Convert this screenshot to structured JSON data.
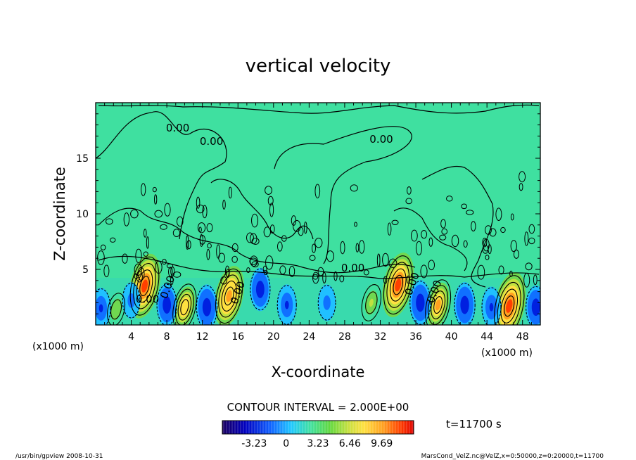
{
  "chart_data": {
    "type": "heatmap",
    "title": "vertical velocity",
    "xlabel": "X-coordinate",
    "ylabel": "Z-coordinate",
    "x_unit_left": "(x1000 m)",
    "x_unit_right": "(x1000 m)",
    "xlim": [
      0,
      50
    ],
    "ylim": [
      0,
      20
    ],
    "x_ticks": [
      "4",
      "8",
      "12",
      "16",
      "20",
      "24",
      "28",
      "32",
      "36",
      "40",
      "44",
      "48"
    ],
    "y_ticks": [
      "5",
      "10",
      "15"
    ],
    "contour_labels": [
      "0.00",
      "0.00",
      "0.00",
      "0.00",
      "0.00",
      "0.00",
      "0.00",
      "0.00",
      "0.00"
    ],
    "contour_interval_text": "CONTOUR INTERVAL = 2.000E+00",
    "colorbar_ticks": [
      "-3.23",
      "0",
      "3.23",
      "6.46",
      "9.69"
    ],
    "colorbar_range": [
      -6.46,
      12.92
    ],
    "time_label": "t=11700 s",
    "footer_left": "/usr/bin/gpview   2008-10-31",
    "footer_right": "MarsCond_VelZ.nc@VelZ,x=0:50000,z=0:20000,t=11700",
    "colors": {
      "background": "#3fe0a0",
      "updraft_core": "#ff4000",
      "downdraft_core": "#0000c0",
      "contour": "#000000"
    },
    "features": [
      {
        "kind": "updraft",
        "x": 5.5,
        "z": 3.5,
        "w": 9.0
      },
      {
        "kind": "updraft",
        "x": 10.0,
        "z": 1.6,
        "w": 6.0
      },
      {
        "kind": "updraft",
        "x": 15.0,
        "z": 2.6,
        "w": 8.0
      },
      {
        "kind": "updraft",
        "x": 31.0,
        "z": 2.0,
        "w": 3.5
      },
      {
        "kind": "updraft",
        "x": 34.0,
        "z": 3.6,
        "w": 9.0
      },
      {
        "kind": "updraft",
        "x": 38.5,
        "z": 1.8,
        "w": 7.0
      },
      {
        "kind": "updraft",
        "x": 46.5,
        "z": 1.7,
        "w": 9.7
      },
      {
        "kind": "updraft",
        "x": 2.3,
        "z": 1.4,
        "w": 2.5
      },
      {
        "kind": "downdraft",
        "x": 0.6,
        "z": 1.5,
        "w": -3.5
      },
      {
        "kind": "downdraft",
        "x": 4.0,
        "z": 2.2,
        "w": -2.5
      },
      {
        "kind": "downdraft",
        "x": 8.0,
        "z": 1.8,
        "w": -4.0
      },
      {
        "kind": "downdraft",
        "x": 12.5,
        "z": 1.6,
        "w": -4.5
      },
      {
        "kind": "downdraft",
        "x": 18.5,
        "z": 3.2,
        "w": -4.0
      },
      {
        "kind": "downdraft",
        "x": 21.5,
        "z": 1.8,
        "w": -3.5
      },
      {
        "kind": "downdraft",
        "x": 26.0,
        "z": 2.0,
        "w": -2.5
      },
      {
        "kind": "downdraft",
        "x": 36.5,
        "z": 2.0,
        "w": -4.5
      },
      {
        "kind": "downdraft",
        "x": 41.5,
        "z": 1.8,
        "w": -4.5
      },
      {
        "kind": "downdraft",
        "x": 44.5,
        "z": 1.6,
        "w": -3.5
      },
      {
        "kind": "downdraft",
        "x": 49.5,
        "z": 1.6,
        "w": -4.0
      }
    ]
  }
}
